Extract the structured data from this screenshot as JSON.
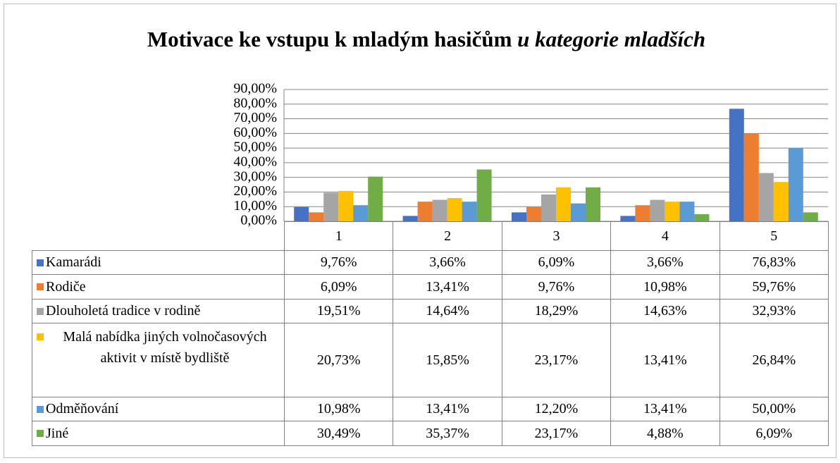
{
  "chart_data": {
    "type": "bar",
    "title": "Motivace ke vstupu k mladým hasičům",
    "title_emphasis": "u kategorie mladších",
    "categories": [
      "1",
      "2",
      "3",
      "4",
      "5"
    ],
    "series": [
      {
        "name": "Kamarádi",
        "color": "#4472c4",
        "values": [
          9.76,
          3.66,
          6.09,
          3.66,
          76.83
        ],
        "value_labels": [
          "9,76%",
          "3,66%",
          "6,09%",
          "3,66%",
          "76,83%"
        ]
      },
      {
        "name": "Rodiče",
        "color": "#ed7d31",
        "values": [
          6.09,
          13.41,
          9.76,
          10.98,
          59.76
        ],
        "value_labels": [
          "6,09%",
          "13,41%",
          "9,76%",
          "10,98%",
          "59,76%"
        ]
      },
      {
        "name": "Dlouholetá tradice v rodině",
        "color": "#a5a5a5",
        "values": [
          19.51,
          14.64,
          18.29,
          14.63,
          32.93
        ],
        "value_labels": [
          "19,51%",
          "14,64%",
          "18,29%",
          "14,63%",
          "32,93%"
        ]
      },
      {
        "name": "Malá nabídka jiných volnočasových aktivit v místě bydliště",
        "color": "#ffc000",
        "values": [
          20.73,
          15.85,
          23.17,
          13.41,
          26.84
        ],
        "value_labels": [
          "20,73%",
          "15,85%",
          "23,17%",
          "13,41%",
          "26,84%"
        ]
      },
      {
        "name": "Odměňování",
        "color": "#5b9bd5",
        "values": [
          10.98,
          13.41,
          12.2,
          13.41,
          50.0
        ],
        "value_labels": [
          "10,98%",
          "13,41%",
          "12,20%",
          "13,41%",
          "50,00%"
        ]
      },
      {
        "name": "Jiné",
        "color": "#70ad47",
        "values": [
          30.49,
          35.37,
          23.17,
          4.88,
          6.09
        ],
        "value_labels": [
          "30,49%",
          "35,37%",
          "23,17%",
          "4,88%",
          "6,09%"
        ]
      }
    ],
    "ylim": [
      0,
      90
    ],
    "yticks": [
      {
        "value": 0,
        "label": "0,00%"
      },
      {
        "value": 10,
        "label": "10,00%"
      },
      {
        "value": 20,
        "label": "20,00%"
      },
      {
        "value": 30,
        "label": "30,00%"
      },
      {
        "value": 40,
        "label": "40,00%"
      },
      {
        "value": 50,
        "label": "50,00%"
      },
      {
        "value": 60,
        "label": "60,00%"
      },
      {
        "value": 70,
        "label": "70,00%"
      },
      {
        "value": 80,
        "label": "80,00%"
      },
      {
        "value": 90,
        "label": "90,00%"
      }
    ],
    "grid": true
  }
}
